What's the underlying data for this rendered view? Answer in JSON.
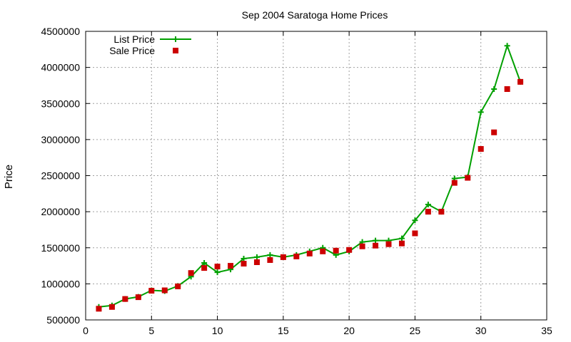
{
  "chart_data": {
    "type": "line",
    "title": "Sep 2004 Saratoga Home Prices",
    "xlabel": "",
    "ylabel": "Price",
    "xlim": [
      0,
      35
    ],
    "ylim": [
      500000,
      4500000
    ],
    "xticks": [
      0,
      5,
      10,
      15,
      20,
      25,
      30,
      35
    ],
    "yticks": [
      500000,
      1000000,
      1500000,
      2000000,
      2500000,
      3000000,
      3500000,
      4000000,
      4500000
    ],
    "grid": true,
    "legend_position": "top-left",
    "series": [
      {
        "name": "List Price",
        "style": "line+cross",
        "color": "#00a000",
        "x": [
          1,
          2,
          3,
          4,
          5,
          6,
          7,
          8,
          9,
          10,
          11,
          12,
          13,
          14,
          15,
          16,
          17,
          18,
          19,
          20,
          21,
          22,
          23,
          24,
          25,
          26,
          27,
          28,
          29,
          30,
          31,
          32,
          33
        ],
        "values": [
          680000,
          700000,
          790000,
          820000,
          910000,
          900000,
          970000,
          1100000,
          1290000,
          1160000,
          1200000,
          1350000,
          1370000,
          1400000,
          1370000,
          1400000,
          1450000,
          1500000,
          1400000,
          1450000,
          1580000,
          1600000,
          1600000,
          1630000,
          1880000,
          2100000,
          2000000,
          2460000,
          2480000,
          3380000,
          3700000,
          4300000,
          3800000
        ]
      },
      {
        "name": "Sale Price",
        "style": "square",
        "color": "#cc0000",
        "x": [
          1,
          2,
          3,
          4,
          5,
          6,
          7,
          8,
          9,
          10,
          11,
          12,
          13,
          14,
          15,
          16,
          17,
          18,
          19,
          20,
          21,
          22,
          23,
          24,
          25,
          26,
          27,
          28,
          29,
          30,
          31,
          32,
          33
        ],
        "values": [
          655000,
          680000,
          790000,
          815000,
          905000,
          910000,
          965000,
          1150000,
          1220000,
          1240000,
          1250000,
          1280000,
          1300000,
          1330000,
          1370000,
          1380000,
          1420000,
          1450000,
          1460000,
          1470000,
          1520000,
          1530000,
          1550000,
          1560000,
          1700000,
          2000000,
          2000000,
          2400000,
          2470000,
          2870000,
          3100000,
          3700000,
          3800000
        ]
      }
    ]
  }
}
